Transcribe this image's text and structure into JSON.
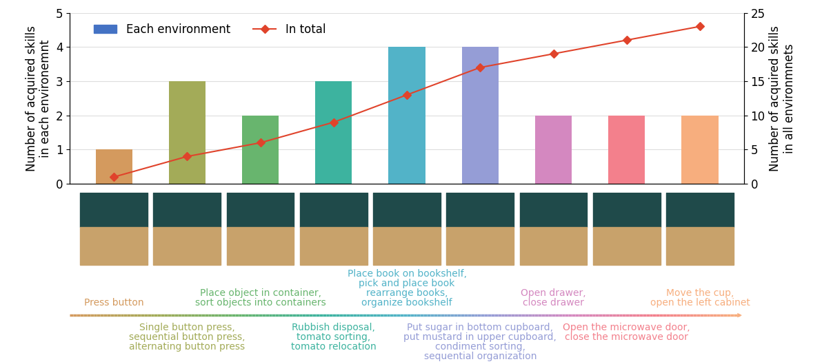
{
  "chart_data": {
    "type": "bar",
    "categories": [
      null,
      null,
      null,
      null,
      null,
      null,
      null,
      null,
      null
    ],
    "series": [
      {
        "name": "Each environment",
        "type": "bar",
        "color": "#4472c4",
        "colors": [
          "#d49a5e",
          "#a3ab58",
          "#68b56e",
          "#3db39f",
          "#52b3c8",
          "#959dd6",
          "#d488c0",
          "#f3808c",
          "#f7ae7e"
        ],
        "values": [
          1,
          3,
          2,
          3,
          4,
          4,
          2,
          2,
          2
        ]
      },
      {
        "name": "In total",
        "type": "line",
        "axis": "y2",
        "color": "#e0432b",
        "marker": "diamond",
        "line_style": "solid",
        "values": [
          1,
          4,
          6,
          9,
          13,
          17,
          19,
          21,
          23
        ]
      }
    ],
    "y_label": "Number of acquired skills\nin each environemnt",
    "y2_label": "Number of acquired skills\nin all environmnets",
    "ylim": [
      0,
      5
    ],
    "yticks": [
      0,
      1,
      2,
      3,
      4,
      5
    ],
    "y2lim": [
      0,
      25
    ],
    "y2ticks": [
      0,
      5,
      10,
      15,
      20,
      25
    ],
    "grid": true,
    "legend": "upper left",
    "tick_labels": "y",
    "skills": [
      "Press button",
      "Single button press,\nsequential button press,\nalternating button press",
      "Place object in container,\nsort objects into containers",
      "Rubbish disposal,\ntomato sorting,\ntomato relocation",
      "Place book on bookshelf,\npick and place book\nrearrange books,\norganize bookshelf",
      "Put sugar in bottom cupboard,\nput mustard in upper cupboard,\ncondiment sorting,\nsequential organization",
      "Open drawer,\nclose drawer",
      "Open the microwave door,\nclose the microwave door",
      "Move the cup,\nopen the left cabinet"
    ]
  }
}
